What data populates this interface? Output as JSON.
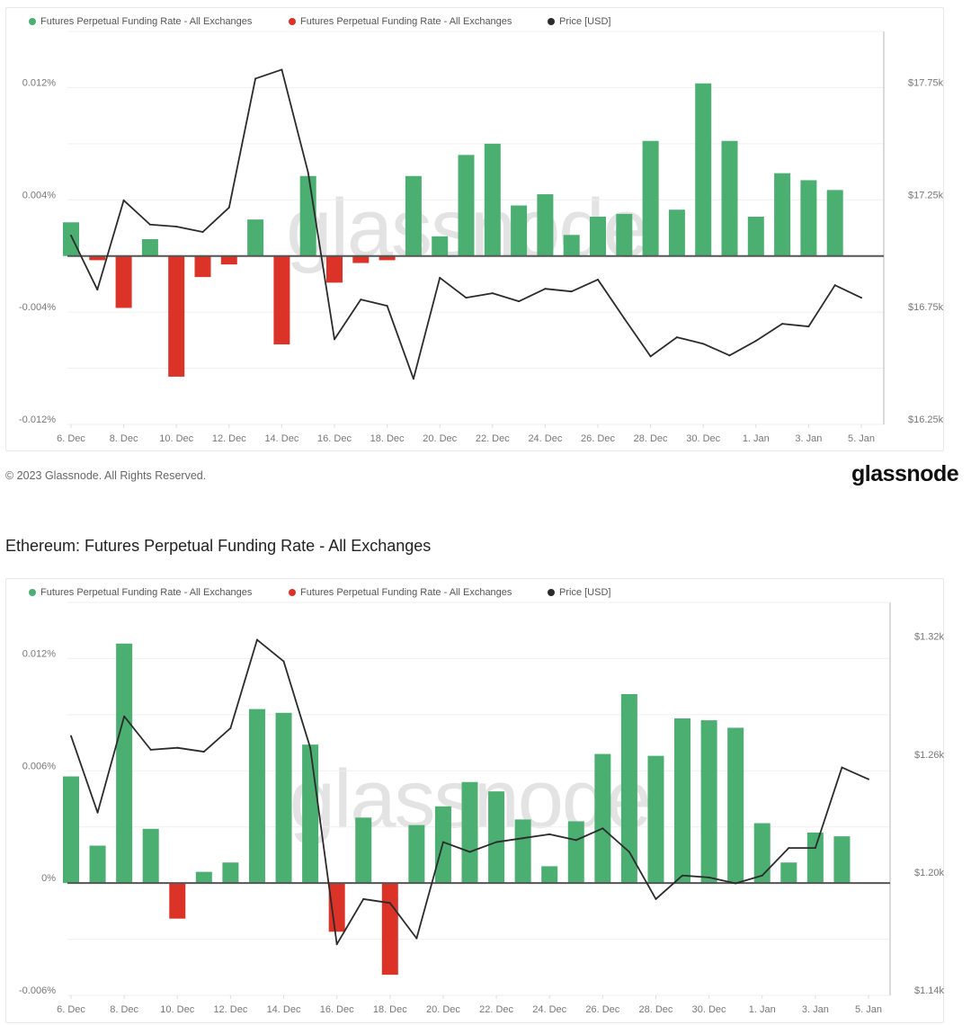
{
  "footer": {
    "copyright": "© 2023 Glassnode. All Rights Reserved.",
    "logo": "glassnode"
  },
  "watermark": "glassnode",
  "colors": {
    "positive": "#4caf72",
    "negative": "#dc3328",
    "price": "#2b2b2b",
    "zero_line": "#555555",
    "grid": "#efefef"
  },
  "chart_data": [
    {
      "type": "bar+line",
      "title": "",
      "legend_placement": "top-left",
      "grid": true,
      "x": [
        "6. Dec",
        "7. Dec",
        "8. Dec",
        "9. Dec",
        "10. Dec",
        "11. Dec",
        "12. Dec",
        "13. Dec",
        "14. Dec",
        "15. Dec",
        "16. Dec",
        "17. Dec",
        "18. Dec",
        "19. Dec",
        "20. Dec",
        "21. Dec",
        "22. Dec",
        "23. Dec",
        "24. Dec",
        "25. Dec",
        "26. Dec",
        "27. Dec",
        "28. Dec",
        "29. Dec",
        "30. Dec",
        "31. Dec",
        "1. Jan",
        "2. Jan",
        "3. Jan",
        "4. Jan",
        "5. Jan"
      ],
      "x_tick_labels": [
        "6. Dec",
        "8. Dec",
        "10. Dec",
        "12. Dec",
        "14. Dec",
        "16. Dec",
        "18. Dec",
        "20. Dec",
        "22. Dec",
        "24. Dec",
        "26. Dec",
        "28. Dec",
        "30. Dec",
        "1. Jan",
        "3. Jan",
        "5. Jan"
      ],
      "y_left": {
        "lim": [
          -0.012,
          0.016
        ],
        "gridlines": [
          -0.012,
          -0.008,
          -0.004,
          0,
          0.004,
          0.008,
          0.012
        ],
        "ticks": [
          -0.012,
          -0.004,
          0.004,
          0.012
        ],
        "tick_labels": [
          "-0.012%",
          "-0.004%",
          "0.004%",
          "0.012%"
        ]
      },
      "y_right": {
        "lim": [
          16250,
          18000
        ],
        "ticks": [
          16250,
          16750,
          17250,
          17750
        ],
        "tick_labels": [
          "$16.25k",
          "$16.75k",
          "$17.25k",
          "$17.75k"
        ]
      },
      "series": [
        {
          "name": "Futures Perpetual Funding Rate - All Exchanges",
          "kind": "bar",
          "axis": "left",
          "color": "#4caf72",
          "values": [
            0.0024,
            null,
            null,
            0.0012,
            null,
            null,
            null,
            0.0026,
            null,
            0.0057,
            null,
            null,
            null,
            0.0057,
            0.0014,
            0.0072,
            0.008,
            0.0036,
            0.0044,
            0.0015,
            0.0028,
            0.003,
            0.0082,
            0.0033,
            0.0123,
            0.0082,
            0.0028,
            0.0059,
            0.0054,
            0.0047,
            null
          ]
        },
        {
          "name": "Futures Perpetual Funding Rate - All Exchanges",
          "kind": "bar",
          "axis": "left",
          "color": "#dc3328",
          "values": [
            null,
            -0.0003,
            -0.0037,
            null,
            -0.0086,
            -0.0015,
            -0.0006,
            null,
            -0.0063,
            null,
            -0.0019,
            -0.0005,
            -0.0003,
            null,
            null,
            null,
            null,
            null,
            null,
            null,
            null,
            null,
            null,
            null,
            null,
            null,
            null,
            null,
            null,
            null,
            null
          ]
        },
        {
          "name": "Price [USD]",
          "kind": "line",
          "axis": "right",
          "color": "#2b2b2b",
          "values": [
            17091,
            16850,
            17248,
            17140,
            17131,
            17107,
            17216,
            17790,
            17830,
            17372,
            16629,
            16806,
            16778,
            16453,
            16903,
            16814,
            16834,
            16798,
            16854,
            16842,
            16895,
            16722,
            16553,
            16638,
            16609,
            16557,
            16622,
            16698,
            16686,
            16870,
            16814
          ]
        }
      ]
    },
    {
      "type": "bar+line",
      "title": "Ethereum: Futures Perpetual Funding Rate - All Exchanges",
      "legend_placement": "top-left",
      "grid": true,
      "x": [
        "6. Dec",
        "7. Dec",
        "8. Dec",
        "9. Dec",
        "10. Dec",
        "11. Dec",
        "12. Dec",
        "13. Dec",
        "14. Dec",
        "15. Dec",
        "16. Dec",
        "17. Dec",
        "18. Dec",
        "19. Dec",
        "20. Dec",
        "21. Dec",
        "22. Dec",
        "23. Dec",
        "24. Dec",
        "25. Dec",
        "26. Dec",
        "27. Dec",
        "28. Dec",
        "29. Dec",
        "30. Dec",
        "31. Dec",
        "1. Jan",
        "2. Jan",
        "3. Jan",
        "4. Jan",
        "5. Jan"
      ],
      "x_tick_labels": [
        "6. Dec",
        "8. Dec",
        "10. Dec",
        "12. Dec",
        "14. Dec",
        "16. Dec",
        "18. Dec",
        "20. Dec",
        "22. Dec",
        "24. Dec",
        "26. Dec",
        "28. Dec",
        "30. Dec",
        "1. Jan",
        "3. Jan",
        "5. Jan"
      ],
      "y_left": {
        "lim": [
          -0.006,
          0.015
        ],
        "gridlines": [
          -0.006,
          -0.003,
          0,
          0.003,
          0.006,
          0.009,
          0.012
        ],
        "ticks": [
          -0.006,
          0,
          0.006,
          0.012
        ],
        "tick_labels": [
          "-0.006%",
          "0%",
          "0.006%",
          "0.012%"
        ]
      },
      "y_right": {
        "lim": [
          1140,
          1340
        ],
        "ticks": [
          1140,
          1200,
          1260,
          1320
        ],
        "tick_labels": [
          "$1.14k",
          "$1.20k",
          "$1.26k",
          "$1.32k"
        ]
      },
      "series": [
        {
          "name": "Futures Perpetual Funding Rate - All Exchanges",
          "kind": "bar",
          "axis": "left",
          "color": "#4caf72",
          "values": [
            0.0057,
            0.002,
            0.0128,
            0.0029,
            null,
            0.0006,
            0.0011,
            0.0093,
            0.0091,
            0.0074,
            null,
            0.0035,
            null,
            0.0031,
            0.0041,
            0.0054,
            0.0049,
            0.0034,
            0.0009,
            0.0033,
            0.0069,
            0.0101,
            0.0068,
            0.0088,
            0.0087,
            0.0083,
            0.0032,
            0.0011,
            0.0027,
            0.0025,
            null
          ]
        },
        {
          "name": "Futures Perpetual Funding Rate - All Exchanges",
          "kind": "bar",
          "axis": "left",
          "color": "#dc3328",
          "values": [
            null,
            null,
            null,
            null,
            -0.0019,
            null,
            null,
            null,
            null,
            null,
            -0.0026,
            null,
            -0.0049,
            null,
            null,
            null,
            null,
            null,
            null,
            null,
            null,
            null,
            null,
            null,
            null,
            null,
            null,
            null,
            null,
            null,
            null
          ]
        },
        {
          "name": "Price [USD]",
          "kind": "line",
          "axis": "right",
          "color": "#2b2b2b",
          "values": [
            1272,
            1233,
            1282,
            1265,
            1266,
            1264,
            1276,
            1321,
            1310,
            1266,
            1166,
            1189,
            1187,
            1169,
            1218,
            1213,
            1218,
            1220,
            1222,
            1219,
            1225,
            1213,
            1189,
            1201,
            1200,
            1197,
            1201,
            1215,
            1215,
            1256,
            1250
          ]
        }
      ]
    }
  ]
}
